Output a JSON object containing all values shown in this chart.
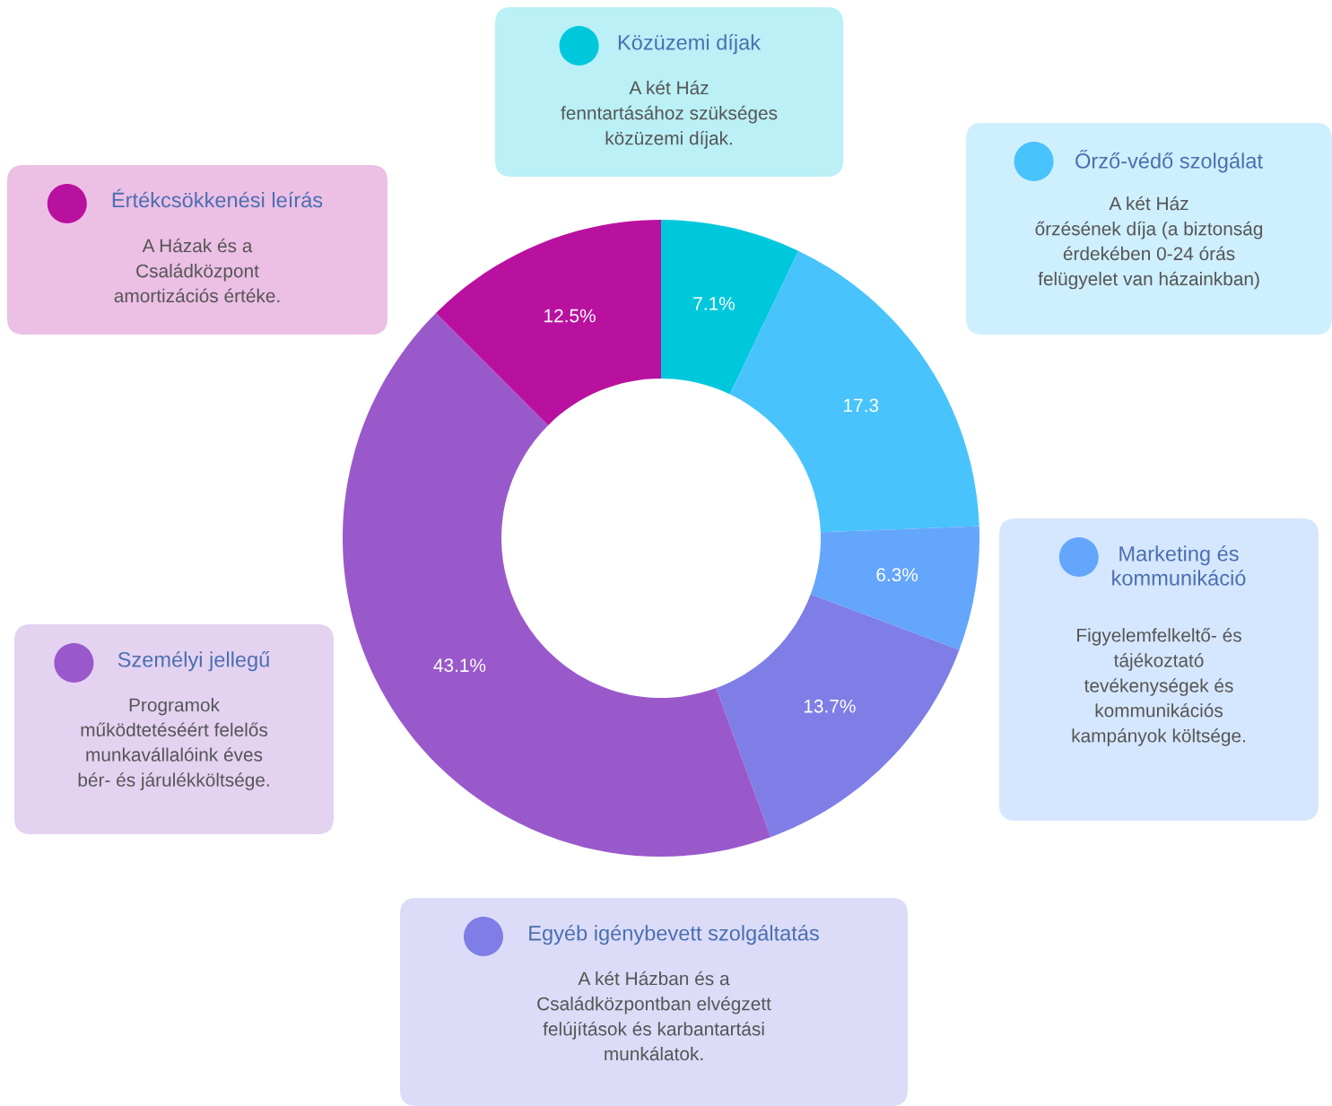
{
  "chart_data": {
    "type": "donut",
    "categories": [
      "Közüzemi díjak",
      "Őrző-védő szolgálat",
      "Marketing és\nkommunikáció",
      "Egyéb igénybevett szolgáltatás",
      "Személyi jellegű",
      "Értékcsökkenési leírás"
    ],
    "values": [
      7.1,
      17.3,
      6.3,
      13.7,
      43.1,
      12.5
    ],
    "colors": [
      "#00c8dc",
      "#48c3fc",
      "#64a6fc",
      "#7e7ee6",
      "#9a59cb",
      "#b9119f"
    ],
    "value_labels": [
      "7.1%",
      "17.3",
      "6.3%",
      "13.7%",
      "43.1%",
      "12.5%"
    ],
    "annotations": [
      "A két Ház\nfenntartásához szükséges\nközüzemi díjak.",
      "A két Ház\nőrzésének díja (a biztonság\nérdekében 0-24 órás\nfelügyelet van házainkban)",
      "Figyelemfelkeltő- és\ntájékoztató\ntevékenységek és\nkommunikációs\nkampányok költsége.",
      "A két Házban és a\nCsaládközpontban elvégzett\nfelújítások és karbantartási\nmunkálatok.",
      "Programok\nműködtetéséért felelős\nmunkavállalóink éves\nbér- és járulékköltsége.",
      "A Házak és a\nCsaládközpont\namortizációs értéke."
    ],
    "legend": "center"
  }
}
